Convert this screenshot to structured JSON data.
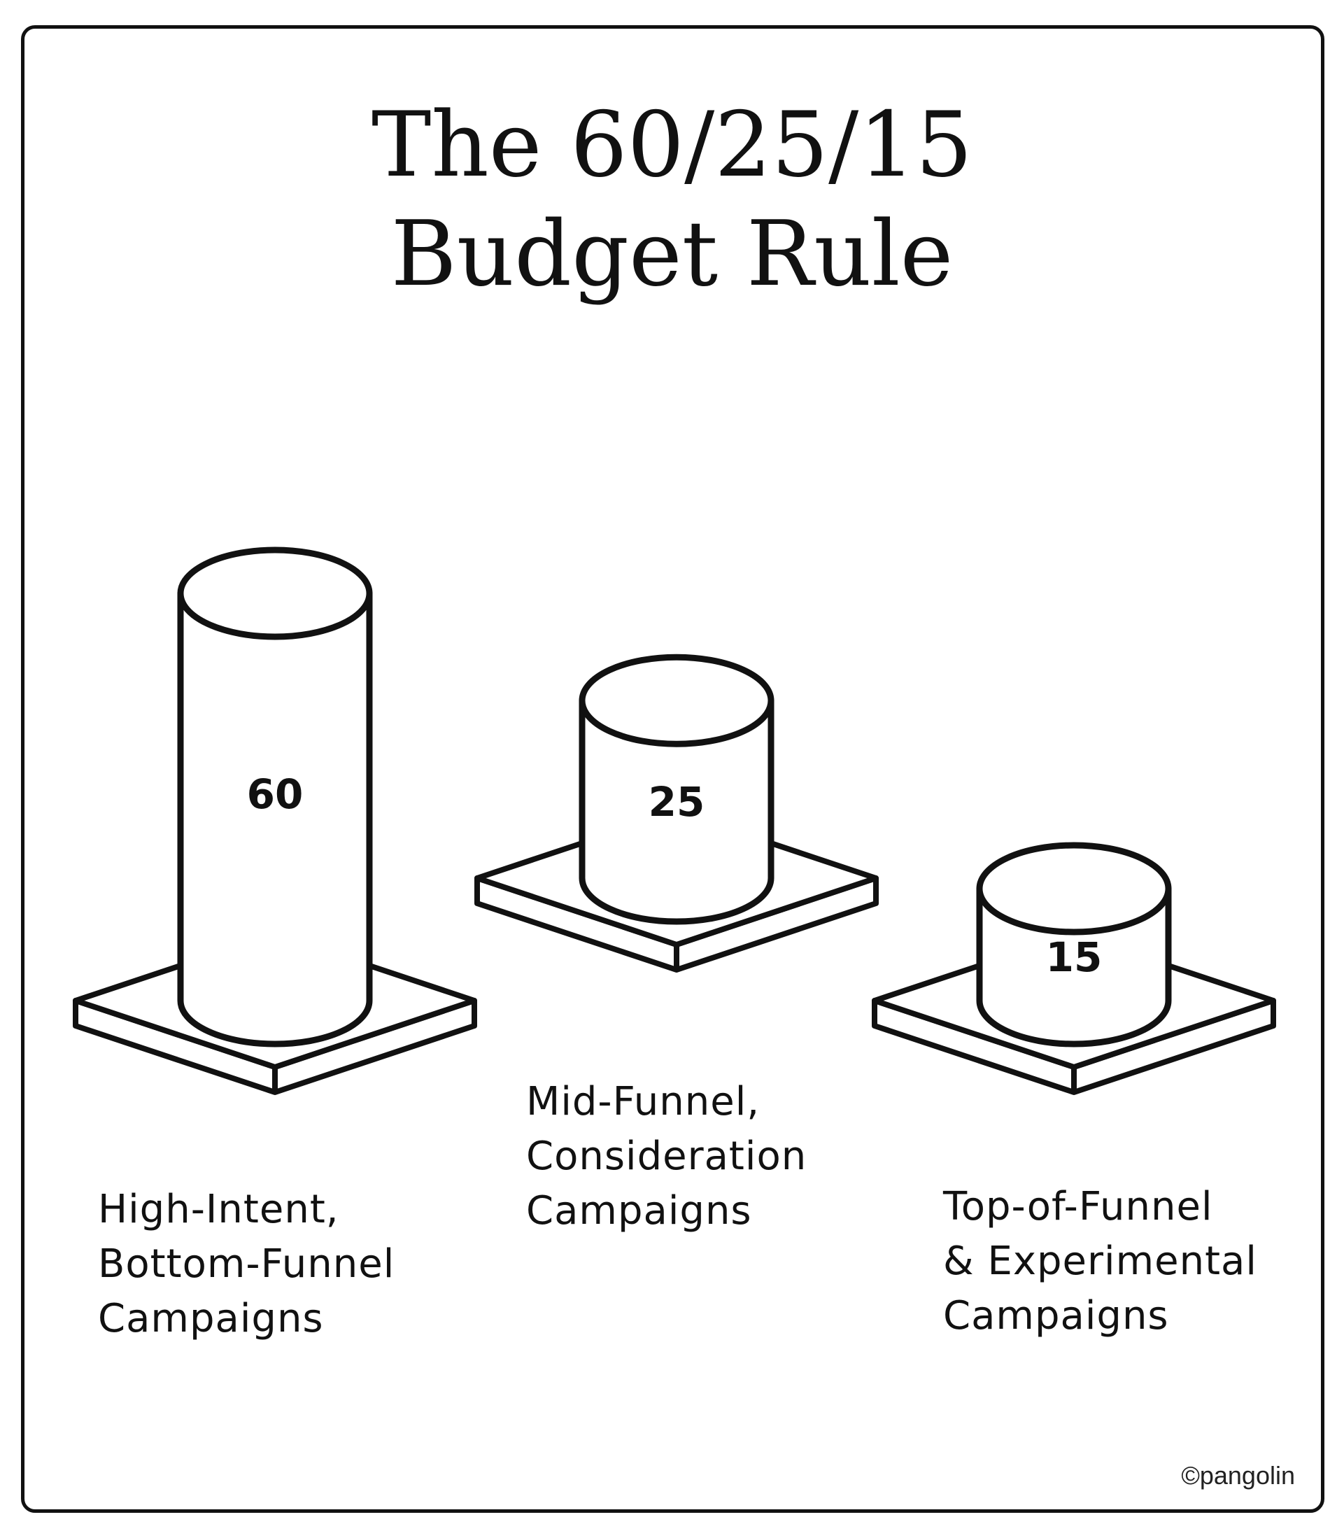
{
  "title_lines": [
    "The 60/25/15",
    "Budget Rule"
  ],
  "credit": "©pangolin",
  "chart_data": {
    "type": "bar",
    "title": "The 60/25/15 Budget Rule",
    "categories": [
      "High-Intent, Bottom-Funnel Campaigns",
      "Mid-Funnel, Consideration Campaigns",
      "Top-of-Funnel & Experimental Campaigns"
    ],
    "category_label_lines": [
      [
        "High-Intent,",
        "Bottom-Funnel",
        "Campaigns"
      ],
      [
        "Mid-Funnel,",
        "Consideration",
        "Campaigns"
      ],
      [
        "Top-of-Funnel",
        "& Experimental",
        "Campaigns"
      ]
    ],
    "values": [
      60,
      25,
      15
    ],
    "data_labels": [
      "60",
      "25",
      "15"
    ],
    "style": "hand-drawn 3D cylinders on square pedestals",
    "grid": false,
    "legend": "none"
  }
}
